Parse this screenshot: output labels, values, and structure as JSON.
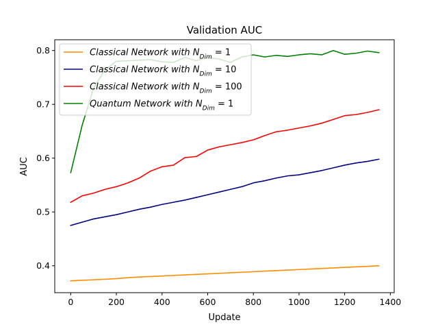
{
  "chart_data": {
    "type": "line",
    "title": "Validation AUC",
    "xlabel": "Update",
    "ylabel": "AUC",
    "xlim": [
      -70,
      1417
    ],
    "ylim": [
      0.35,
      0.82
    ],
    "x_ticks": [
      0,
      200,
      400,
      600,
      800,
      1000,
      1200,
      1400
    ],
    "y_ticks": [
      0.4,
      0.5,
      0.6,
      0.7,
      0.8
    ],
    "x_tick_labels": [
      "0",
      "200",
      "400",
      "600",
      "800",
      "1000",
      "1200",
      "1400"
    ],
    "y_tick_labels": [
      "0.4",
      "0.5",
      "0.6",
      "0.7",
      "0.8"
    ],
    "grid": false,
    "legend_position": "top-left",
    "x": [
      0,
      50,
      100,
      150,
      200,
      250,
      300,
      350,
      400,
      450,
      500,
      550,
      600,
      650,
      700,
      750,
      800,
      850,
      900,
      950,
      1000,
      1050,
      1100,
      1150,
      1200,
      1250,
      1300,
      1350
    ],
    "series": [
      {
        "name": "Classical Network with N_Dim = 1",
        "legend_prefix": "Classical Network with N",
        "legend_sub": "Dim",
        "legend_suffix": " = 1",
        "color": "#ff8c00",
        "values": [
          0.372,
          0.373,
          0.374,
          0.375,
          0.376,
          0.378,
          0.379,
          0.38,
          0.381,
          0.382,
          0.383,
          0.384,
          0.385,
          0.386,
          0.387,
          0.388,
          0.389,
          0.39,
          0.391,
          0.392,
          0.393,
          0.394,
          0.395,
          0.396,
          0.397,
          0.398,
          0.399,
          0.4
        ]
      },
      {
        "name": "Classical Network with N_Dim = 10",
        "legend_prefix": "Classical Network with N",
        "legend_sub": "Dim",
        "legend_suffix": " = 10",
        "color": "#000080",
        "values": [
          0.475,
          0.481,
          0.487,
          0.491,
          0.495,
          0.5,
          0.505,
          0.509,
          0.514,
          0.518,
          0.522,
          0.527,
          0.532,
          0.537,
          0.542,
          0.547,
          0.554,
          0.558,
          0.563,
          0.567,
          0.569,
          0.573,
          0.577,
          0.582,
          0.587,
          0.591,
          0.594,
          0.598
        ]
      },
      {
        "name": "Classical Network with N_Dim = 100",
        "legend_prefix": "Classical Network with N",
        "legend_sub": "Dim",
        "legend_suffix": " = 100",
        "color": "#ff0000",
        "values": [
          0.518,
          0.53,
          0.535,
          0.542,
          0.547,
          0.554,
          0.563,
          0.576,
          0.584,
          0.587,
          0.601,
          0.603,
          0.615,
          0.621,
          0.625,
          0.629,
          0.634,
          0.642,
          0.649,
          0.652,
          0.656,
          0.66,
          0.665,
          0.672,
          0.679,
          0.681,
          0.685,
          0.69
        ]
      },
      {
        "name": "Quantum Network with N_Dim = 1",
        "legend_prefix": "Quantum Network with N",
        "legend_sub": "Dim",
        "legend_suffix": " = 1",
        "color": "#008000",
        "values": [
          0.573,
          0.661,
          0.73,
          0.764,
          0.78,
          0.781,
          0.782,
          0.783,
          0.779,
          0.778,
          0.787,
          0.781,
          0.787,
          0.784,
          0.778,
          0.788,
          0.792,
          0.788,
          0.791,
          0.789,
          0.792,
          0.794,
          0.792,
          0.8,
          0.793,
          0.795,
          0.799,
          0.796
        ]
      }
    ]
  }
}
